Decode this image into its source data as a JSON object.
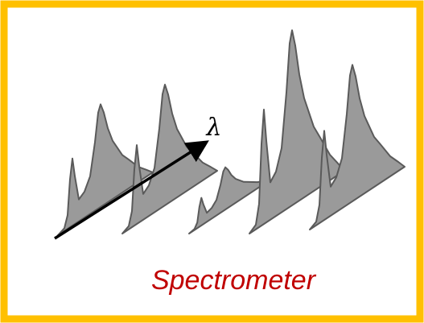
{
  "diagram": {
    "axis_label": "λ",
    "caption": "Spectrometer"
  }
}
